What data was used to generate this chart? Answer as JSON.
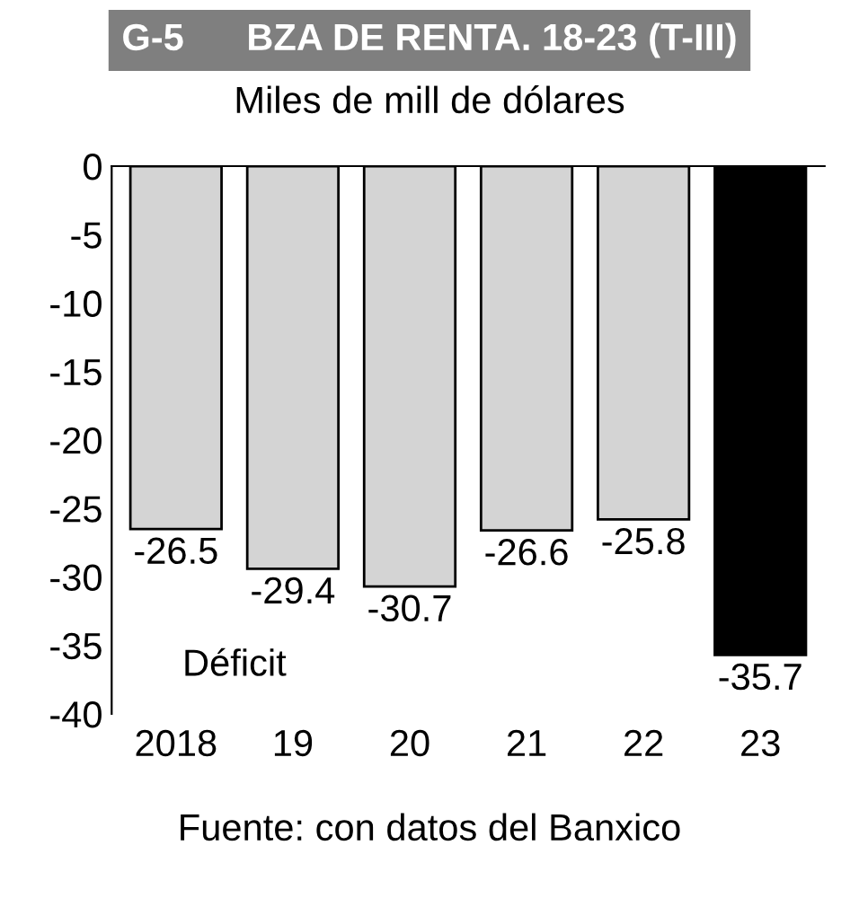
{
  "chart_data": {
    "type": "bar",
    "title": "G-5      BZA DE RENTA. 18-23 (T-III)",
    "ylabel": "Miles de mill de dólares",
    "categories": [
      "2018",
      "19",
      "20",
      "21",
      "22",
      "23"
    ],
    "values": [
      -26.5,
      -29.4,
      -30.7,
      -26.6,
      -25.8,
      -35.7
    ],
    "colors": [
      "#d4d4d4",
      "#d4d4d4",
      "#d4d4d4",
      "#d4d4d4",
      "#d4d4d4",
      "#000000"
    ],
    "ylim": [
      -40,
      0
    ],
    "yticks": [
      0,
      -5,
      -10,
      -15,
      -20,
      -25,
      -30,
      -35,
      -40
    ],
    "data_labels": true,
    "grid": false,
    "legend": false,
    "annotations": [
      "Déficit",
      "Fuente: con datos del Banxico"
    ]
  }
}
